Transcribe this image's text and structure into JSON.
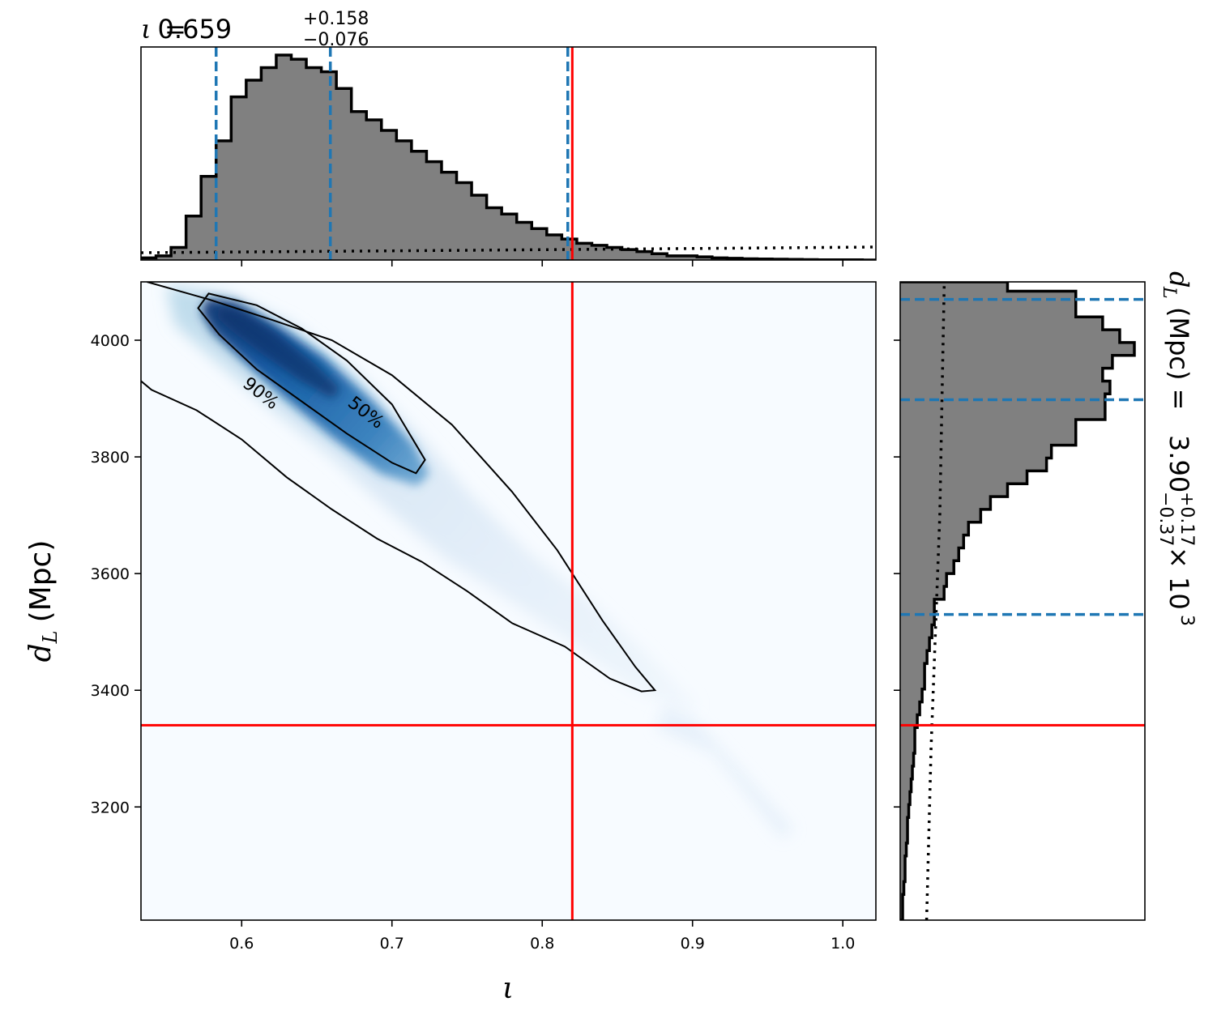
{
  "chart_data": [
    {
      "type": "histogram",
      "panel": "marginal-iota",
      "variable": "ι",
      "summary": {
        "median": "0.659",
        "plus": "+0.158",
        "minus": "−0.076"
      },
      "xlim": [
        0.533,
        1.022
      ],
      "ylim": [
        0,
        1.0
      ],
      "bin_edges": [
        0.533,
        0.543,
        0.553,
        0.563,
        0.573,
        0.583,
        0.593,
        0.603,
        0.613,
        0.623,
        0.633,
        0.643,
        0.653,
        0.663,
        0.673,
        0.683,
        0.693,
        0.703,
        0.713,
        0.723,
        0.733,
        0.743,
        0.753,
        0.763,
        0.773,
        0.783,
        0.793,
        0.803,
        0.813,
        0.823,
        0.833,
        0.843,
        0.853,
        0.863,
        0.873,
        0.883,
        0.893,
        0.903,
        0.913,
        0.923,
        0.933,
        0.943,
        0.953,
        0.963,
        0.973,
        0.983,
        0.993,
        1.003,
        1.013,
        1.022
      ],
      "densities": [
        0.01,
        0.02,
        0.06,
        0.21,
        0.4,
        0.57,
        0.78,
        0.86,
        0.92,
        0.98,
        0.96,
        0.92,
        0.9,
        0.82,
        0.71,
        0.67,
        0.62,
        0.57,
        0.52,
        0.47,
        0.42,
        0.37,
        0.31,
        0.25,
        0.22,
        0.18,
        0.15,
        0.12,
        0.1,
        0.08,
        0.07,
        0.06,
        0.05,
        0.04,
        0.03,
        0.02,
        0.02,
        0.015,
        0.01,
        0.008,
        0.006,
        0.005,
        0.004,
        0.003,
        0.002,
        0.001,
        0.001,
        0.001,
        0.0
      ],
      "prior_level": 0.04,
      "quantiles": [
        0.583,
        0.659,
        0.817
      ],
      "truth": 0.82
    },
    {
      "type": "heatmap",
      "panel": "joint",
      "xlabel": "ι",
      "ylabel": "d_L (Mpc)",
      "xlim": [
        0.533,
        1.022
      ],
      "ylim": [
        3006,
        4100
      ],
      "xticks": [
        "0.6",
        "0.7",
        "0.8",
        "0.9",
        "1.0"
      ],
      "yticks": [
        "3200",
        "3400",
        "3600",
        "3800",
        "4000"
      ],
      "contours": [
        {
          "label": "90%",
          "points": [
            [
              0.537,
              4100
            ],
            [
              0.578,
              4070
            ],
            [
              0.62,
              4035
            ],
            [
              0.66,
              4000
            ],
            [
              0.7,
              3940
            ],
            [
              0.74,
              3855
            ],
            [
              0.78,
              3740
            ],
            [
              0.81,
              3640
            ],
            [
              0.84,
              3520
            ],
            [
              0.862,
              3440
            ],
            [
              0.875,
              3400
            ],
            [
              0.866,
              3398
            ],
            [
              0.845,
              3420
            ],
            [
              0.815,
              3475
            ],
            [
              0.78,
              3515
            ],
            [
              0.75,
              3570
            ],
            [
              0.72,
              3620
            ],
            [
              0.69,
              3660
            ],
            [
              0.66,
              3710
            ],
            [
              0.63,
              3765
            ],
            [
              0.6,
              3830
            ],
            [
              0.57,
              3880
            ],
            [
              0.54,
              3915
            ],
            [
              0.533,
              3930
            ]
          ]
        },
        {
          "label": "50%",
          "points": [
            [
              0.578,
              4080
            ],
            [
              0.61,
              4060
            ],
            [
              0.64,
              4020
            ],
            [
              0.67,
              3965
            ],
            [
              0.7,
              3890
            ],
            [
              0.722,
              3795
            ],
            [
              0.716,
              3772
            ],
            [
              0.7,
              3790
            ],
            [
              0.67,
              3840
            ],
            [
              0.64,
              3895
            ],
            [
              0.61,
              3950
            ],
            [
              0.585,
              4010
            ],
            [
              0.571,
              4055
            ]
          ]
        }
      ],
      "contour_labels": [
        {
          "text": "90%",
          "x": 0.613,
          "y": 3910
        },
        {
          "text": "50%",
          "x": 0.683,
          "y": 3877
        }
      ],
      "truth": {
        "x": 0.82,
        "y": 3340
      }
    },
    {
      "type": "histogram",
      "panel": "marginal-dL",
      "variable": "d_L (Mpc)",
      "summary": {
        "median": "3.90",
        "plus": "+0.17",
        "minus": "−0.37",
        "scale": "× 10",
        "exponent": "3"
      },
      "ylim": [
        3006,
        4100
      ],
      "xlim": [
        0,
        1.0
      ],
      "bin_edges": [
        3006,
        3028,
        3050,
        3072,
        3094,
        3116,
        3138,
        3160,
        3182,
        3204,
        3226,
        3248,
        3270,
        3292,
        3314,
        3336,
        3358,
        3380,
        3402,
        3424,
        3446,
        3468,
        3490,
        3512,
        3534,
        3556,
        3578,
        3600,
        3622,
        3644,
        3666,
        3688,
        3710,
        3732,
        3754,
        3776,
        3798,
        3820,
        3842,
        3864,
        3886,
        3908,
        3930,
        3952,
        3974,
        3996,
        4018,
        4040,
        4062,
        4084,
        4100
      ],
      "densities": [
        0.01,
        0.01,
        0.015,
        0.02,
        0.02,
        0.025,
        0.03,
        0.03,
        0.035,
        0.04,
        0.045,
        0.05,
        0.055,
        0.06,
        0.06,
        0.07,
        0.08,
        0.09,
        0.1,
        0.1,
        0.11,
        0.12,
        0.13,
        0.14,
        0.14,
        0.18,
        0.19,
        0.22,
        0.24,
        0.26,
        0.28,
        0.33,
        0.37,
        0.44,
        0.52,
        0.6,
        0.62,
        0.72,
        0.72,
        0.84,
        0.84,
        0.86,
        0.83,
        0.87,
        0.96,
        0.9,
        0.83,
        0.72,
        0.72,
        0.44
      ],
      "prior_x": [
        0.12,
        0.13,
        0.14,
        0.15,
        0.16,
        0.17,
        0.18,
        0.19,
        0.2
      ],
      "prior_y": [
        3006,
        3150,
        3300,
        3400,
        3500,
        3600,
        3700,
        3900,
        4100
      ],
      "quantiles": [
        3530,
        3898,
        4070
      ],
      "truth": 3340
    }
  ]
}
